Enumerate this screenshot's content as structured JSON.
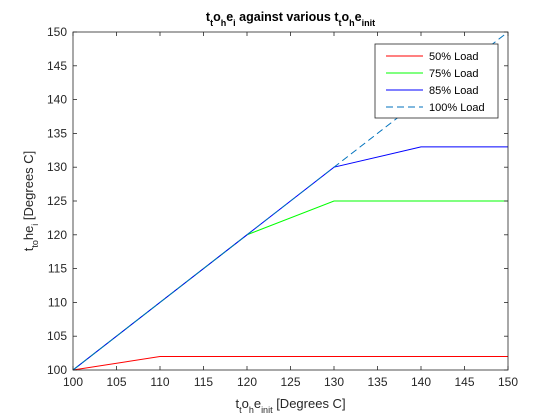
{
  "chart_data": {
    "type": "line",
    "title": {
      "parts": [
        {
          "text": "t",
          "sub": false
        },
        {
          "text": "t",
          "sub": true
        },
        {
          "text": "o",
          "sub": false
        },
        {
          "text": "h",
          "sub": true
        },
        {
          "text": "e",
          "sub": false
        },
        {
          "text": "i",
          "sub": true
        },
        {
          "text": " against various t",
          "sub": false
        },
        {
          "text": "t",
          "sub": true
        },
        {
          "text": "o",
          "sub": false
        },
        {
          "text": "h",
          "sub": true
        },
        {
          "text": "e",
          "sub": false
        },
        {
          "text": "init",
          "sub": true
        }
      ]
    },
    "xlabel": {
      "parts": [
        {
          "text": "t",
          "sub": false
        },
        {
          "text": "t",
          "sub": true
        },
        {
          "text": "o",
          "sub": false
        },
        {
          "text": "h",
          "sub": true
        },
        {
          "text": "e",
          "sub": false
        },
        {
          "text": "init",
          "sub": true
        },
        {
          "text": " [Degrees C]",
          "sub": false
        }
      ]
    },
    "ylabel": {
      "parts": [
        {
          "text": "t",
          "sub": false
        },
        {
          "text": "to",
          "sub": true
        },
        {
          "text": "he",
          "sub": false
        },
        {
          "text": "i",
          "sub": true
        },
        {
          "text": " [Degrees C]",
          "sub": false
        }
      ]
    },
    "xlim": [
      100,
      150
    ],
    "ylim": [
      100,
      150
    ],
    "xticks": [
      "100",
      "105",
      "110",
      "115",
      "120",
      "125",
      "130",
      "135",
      "140",
      "145",
      "150"
    ],
    "yticks": [
      "100",
      "105",
      "110",
      "115",
      "120",
      "125",
      "130",
      "135",
      "140",
      "145",
      "150"
    ],
    "grid": false,
    "legend_position": "top-right",
    "x": [
      100,
      110,
      120,
      130,
      140,
      150
    ],
    "series": [
      {
        "name": "50% Load",
        "color": "#ff0000",
        "style": "solid",
        "values": [
          100,
          102,
          102,
          102,
          102,
          102
        ]
      },
      {
        "name": "75% Load",
        "color": "#00ff00",
        "style": "solid",
        "values": [
          100,
          110,
          120,
          125,
          125,
          125
        ]
      },
      {
        "name": "85% Load",
        "color": "#0000ff",
        "style": "solid",
        "values": [
          100,
          110,
          120,
          130,
          133,
          133
        ]
      },
      {
        "name": "100% Load",
        "color": "#0072bd",
        "style": "dashed",
        "values": [
          100,
          110,
          120,
          130,
          140,
          150
        ]
      }
    ]
  }
}
